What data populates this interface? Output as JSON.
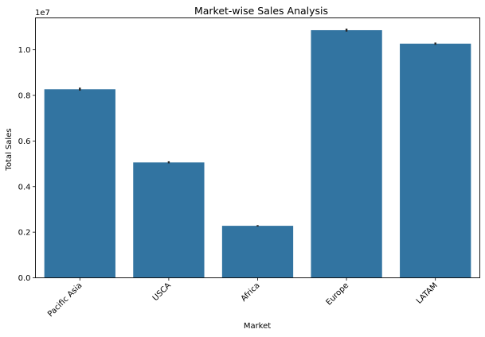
{
  "chart_data": {
    "type": "bar",
    "title": "Market-wise Sales Analysis",
    "xlabel": "Market",
    "ylabel": "Total Sales",
    "offset_label": "1e7",
    "categories": [
      "Pacific Asia",
      "USCA",
      "Africa",
      "Europe",
      "LATAM"
    ],
    "values": [
      8.27,
      5.06,
      2.28,
      10.86,
      10.27
    ],
    "error_low": [
      8.21,
      5.02,
      2.25,
      10.8,
      10.22
    ],
    "error_high": [
      8.34,
      5.11,
      2.31,
      10.93,
      10.32
    ],
    "yticks": [
      0.0,
      0.2,
      0.4,
      0.6,
      0.8,
      1.0
    ],
    "ylim": [
      0,
      11.4
    ],
    "tick_rotation": 45,
    "bar_color": "#3274a1",
    "error_color": "#262626",
    "grid": false,
    "legend": "none"
  }
}
